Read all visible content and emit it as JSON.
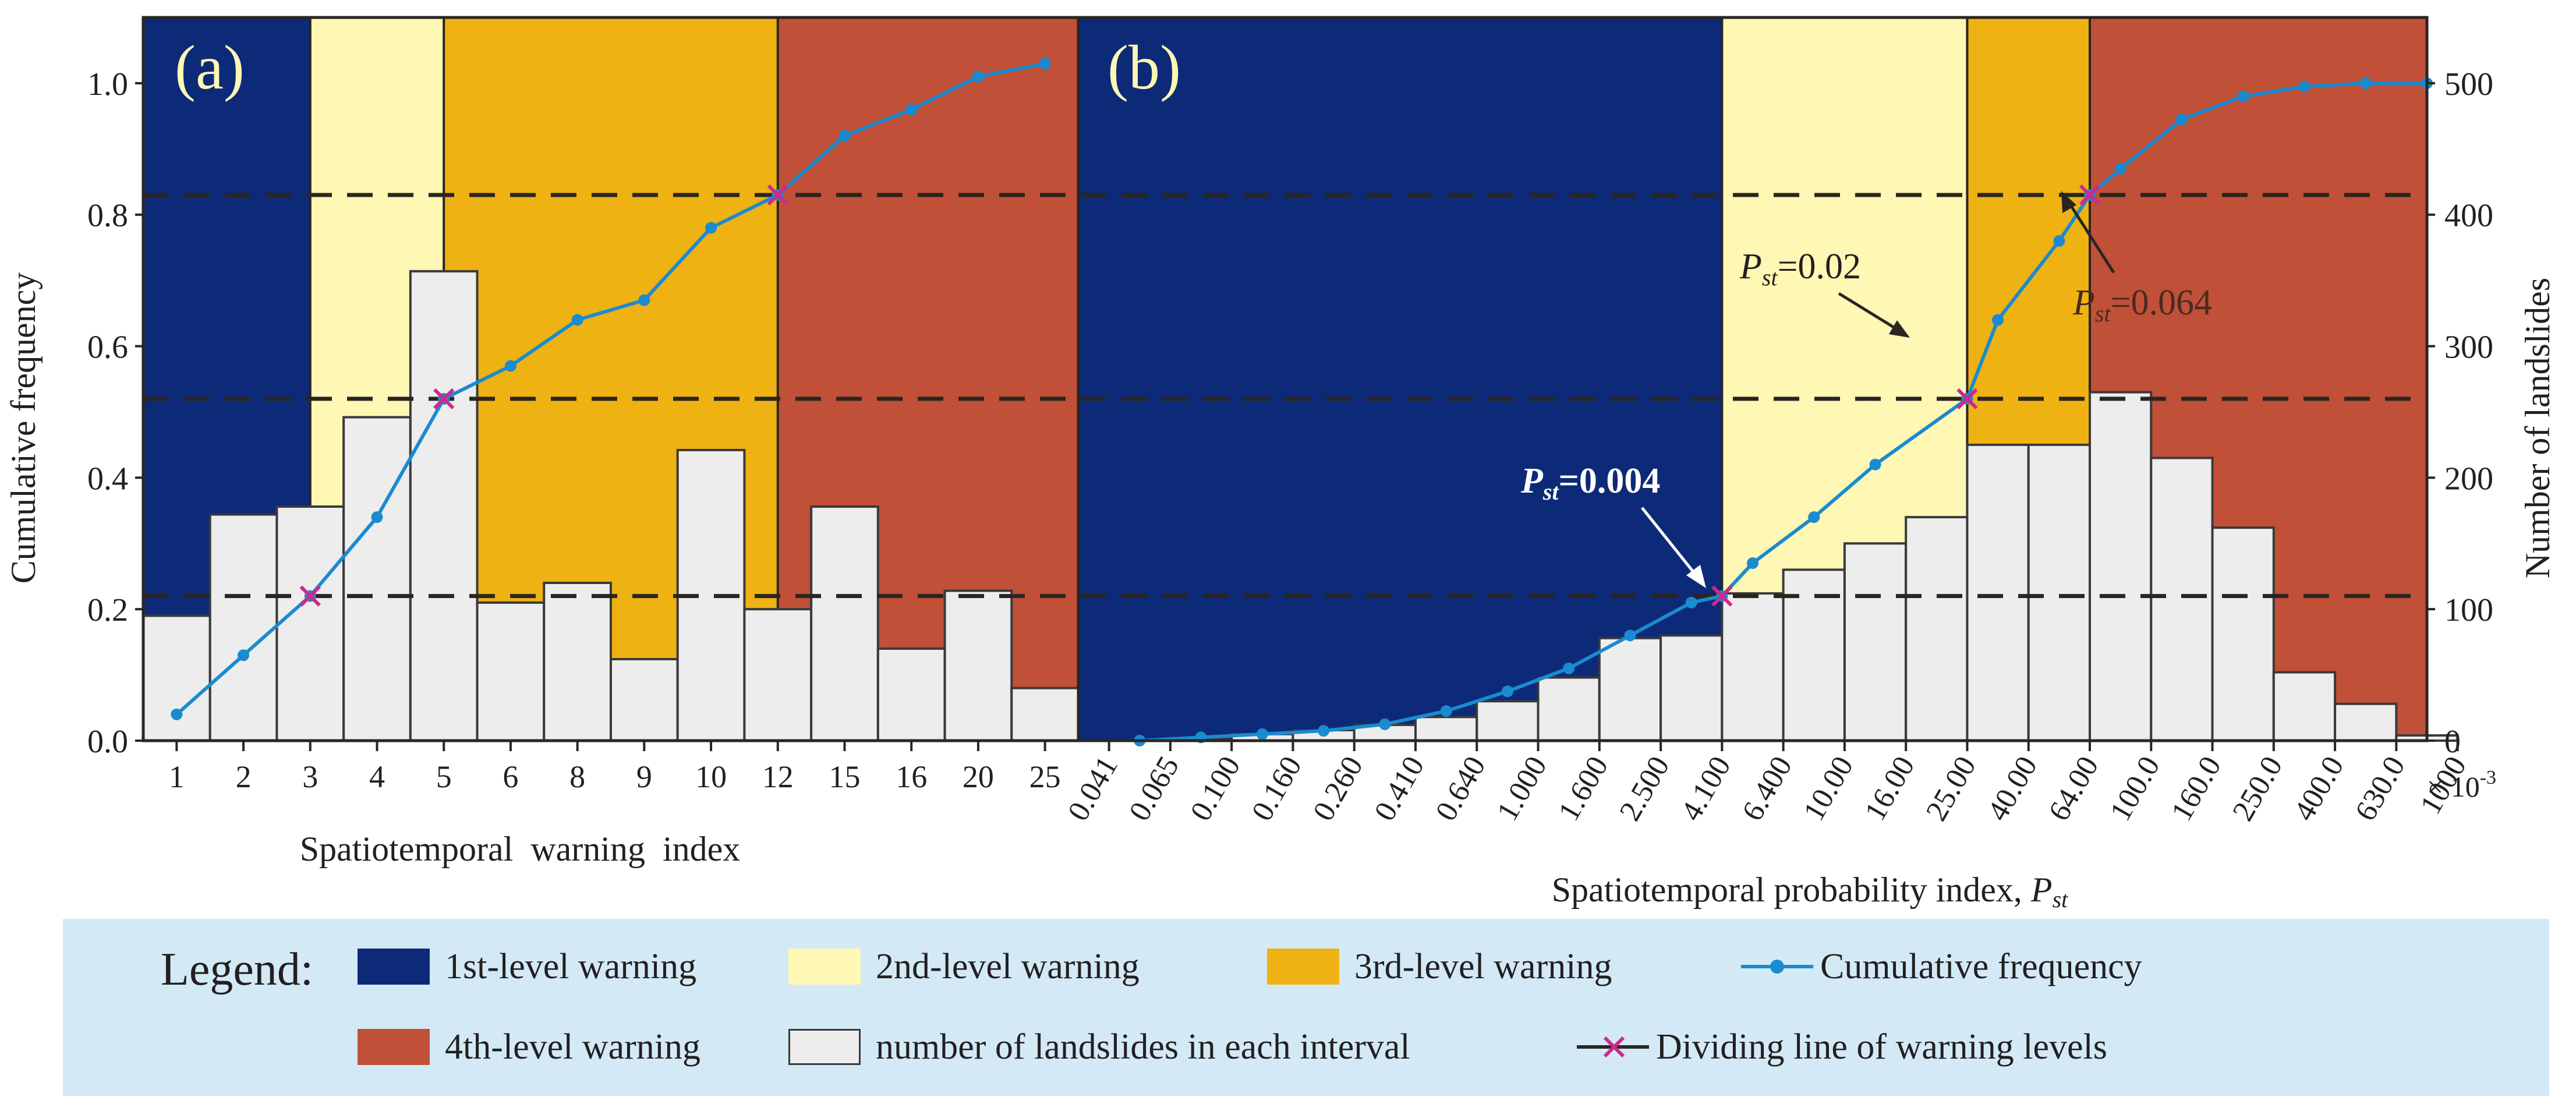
{
  "colors": {
    "level1": "#0d2a78",
    "level2": "#fff7b4",
    "level3": "#efb213",
    "level4": "#c05038",
    "bar_fill": "#ededed",
    "bar_stroke": "#3a3a3a",
    "cum_line": "#1a8bd0",
    "cross": "#cc2a8c",
    "dash": "#2a2520",
    "legend_bg": "#d3eaf6"
  },
  "chart_data": [
    {
      "type": "bar",
      "panel_label": "(a)",
      "xlabel": "Spatiotemporal  warning  index",
      "ylabel": "Cumulative frequency",
      "categories": [
        "1",
        "2",
        "3",
        "4",
        "5",
        "6",
        "8",
        "9",
        "10",
        "12",
        "15",
        "16",
        "20",
        "25"
      ],
      "landslide_counts": [
        95,
        172,
        178,
        246,
        357,
        105,
        120,
        62,
        221,
        100,
        178,
        70,
        114,
        40
      ],
      "cumulative_frequency": [
        0.04,
        0.13,
        0.22,
        0.34,
        0.52,
        0.57,
        0.64,
        0.67,
        0.78,
        0.83,
        0.92,
        0.96,
        1.01,
        1.03
      ],
      "ylim_left": [
        0,
        1.1
      ],
      "yticks_left": [
        "0.0",
        "0.2",
        "0.4",
        "0.6",
        "0.8",
        "1.0"
      ],
      "ylim_right": [
        0,
        550
      ],
      "warning_zones": [
        {
          "level": 1,
          "from": "1",
          "to": "3"
        },
        {
          "level": 2,
          "from": "3",
          "to": "5"
        },
        {
          "level": 3,
          "from": "5",
          "to": "12"
        },
        {
          "level": 4,
          "from": "12",
          "to": "25"
        }
      ],
      "dividing_lines": [
        0.22,
        0.52,
        0.83
      ],
      "dividing_points": [
        {
          "category": "3",
          "y": 0.22
        },
        {
          "category": "5",
          "y": 0.52
        },
        {
          "category": "12",
          "y": 0.83
        }
      ]
    },
    {
      "type": "bar",
      "panel_label": "(b)",
      "xlabel": "Spatiotemporal probability index, ",
      "xlabel_var": "P",
      "xlabel_sub": "st",
      "x_multiplier": "× 10",
      "x_multiplier_exp": "-3",
      "ylabel": "Number of landslides",
      "categories": [
        "0.041",
        "0.065",
        "0.100",
        "0.160",
        "0.260",
        "0.410",
        "0.640",
        "1.000",
        "1.600",
        "2.500",
        "4.100",
        "6.400",
        "10.00",
        "16.00",
        "25.00",
        "40.00",
        "64.00",
        "100.0",
        "160.0",
        "250.0",
        "400.0",
        "630.0",
        "1000"
      ],
      "landslide_counts": [
        0,
        2,
        5,
        8,
        12,
        18,
        30,
        48,
        78,
        80,
        112,
        130,
        150,
        170,
        225,
        225,
        265,
        215,
        162,
        52,
        28,
        4
      ],
      "cumulative_frequency_points": [
        {
          "x": 0.5,
          "y": 0.0
        },
        {
          "x": 1.5,
          "y": 0.005
        },
        {
          "x": 2.5,
          "y": 0.01
        },
        {
          "x": 3.5,
          "y": 0.015
        },
        {
          "x": 4.5,
          "y": 0.025
        },
        {
          "x": 5.5,
          "y": 0.045
        },
        {
          "x": 6.5,
          "y": 0.075
        },
        {
          "x": 7.5,
          "y": 0.11
        },
        {
          "x": 8.5,
          "y": 0.16
        },
        {
          "x": 9.5,
          "y": 0.21
        },
        {
          "x": 10.0,
          "y": 0.22
        },
        {
          "x": 10.5,
          "y": 0.27
        },
        {
          "x": 11.5,
          "y": 0.34
        },
        {
          "x": 12.5,
          "y": 0.42
        },
        {
          "x": 14.0,
          "y": 0.52
        },
        {
          "x": 14.5,
          "y": 0.64
        },
        {
          "x": 15.5,
          "y": 0.76
        },
        {
          "x": 16.0,
          "y": 0.83
        },
        {
          "x": 16.5,
          "y": 0.87
        },
        {
          "x": 17.5,
          "y": 0.945
        },
        {
          "x": 18.5,
          "y": 0.98
        },
        {
          "x": 19.5,
          "y": 0.995
        },
        {
          "x": 20.5,
          "y": 1.0
        },
        {
          "x": 21.5,
          "y": 1.0
        }
      ],
      "ylim_right": [
        0,
        550
      ],
      "yticks_right": [
        "0",
        "100",
        "200",
        "300",
        "400",
        "500"
      ],
      "warning_zones": [
        {
          "level": 1,
          "from": "0.041",
          "to": "4.100"
        },
        {
          "level": 2,
          "from": "4.100",
          "to": "25.00"
        },
        {
          "level": 3,
          "from": "25.00",
          "to": "64.00"
        },
        {
          "level": 4,
          "from": "64.00",
          "to": "1000"
        }
      ],
      "dividing_points": [
        {
          "x": 10,
          "y": 0.22
        },
        {
          "x": 14,
          "y": 0.52
        },
        {
          "x": 16,
          "y": 0.83
        }
      ],
      "annotations": [
        {
          "var": "P",
          "sub": "st",
          "text": "=0.004"
        },
        {
          "var": "P",
          "sub": "st",
          "text": "=0.02"
        },
        {
          "var": "P",
          "sub": "st",
          "text": "=0.064"
        }
      ]
    }
  ],
  "legend": {
    "title": "Legend:",
    "items": [
      {
        "label": "1st-level warning"
      },
      {
        "label": "2nd-level warning"
      },
      {
        "label": "3rd-level warning"
      },
      {
        "label": "Cumulative frequency"
      },
      {
        "label": "4th-level warning"
      },
      {
        "label": "number of landslides in each interval"
      },
      {
        "label": "Dividing line of warning levels"
      }
    ]
  }
}
